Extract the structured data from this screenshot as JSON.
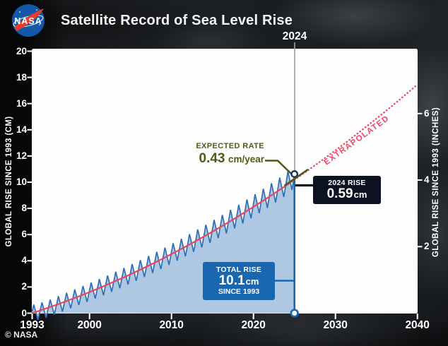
{
  "header": {
    "title": "Satellite Record of Sea Level Rise",
    "logo": "NASA"
  },
  "credit": "© NASA",
  "chart_data": {
    "type": "area",
    "title": "Satellite Record of Sea Level Rise",
    "x_axis": {
      "ticks": [
        1993,
        2000,
        2010,
        2020,
        2030,
        2040
      ],
      "range": [
        1993,
        2040.5
      ]
    },
    "y_axis_left": {
      "label": "GLOBAL RISE SINCE 1993 (CM)",
      "ticks": [
        0,
        2,
        4,
        6,
        8,
        10,
        12,
        14,
        16,
        18,
        20
      ],
      "range": [
        0,
        20.2
      ]
    },
    "y_axis_right": {
      "label": "GLOBAL RISE SINCE 1993 (INCHES)",
      "ticks": [
        2,
        4,
        6
      ],
      "cm_per_inch": 2.54
    },
    "series": {
      "start_year": 1993,
      "annual_mean_cm": [
        0,
        0.15,
        0.35,
        0.6,
        0.85,
        1.1,
        1.36,
        1.61,
        1.87,
        2.13,
        2.41,
        2.69,
        2.98,
        3.27,
        3.58,
        3.89,
        4.2,
        4.53,
        4.86,
        5.2,
        5.55,
        5.9,
        6.26,
        6.63,
        7.01,
        7.39,
        7.78,
        8.18,
        8.58,
        9.0,
        9.42,
        9.85
      ],
      "latest": {
        "year": 2025.0,
        "cm": 10.45
      },
      "seasonal_amplitude_cm": {
        "start": 0.62,
        "end": 0.86
      }
    },
    "trend": {
      "quadratic_cm": {
        "a": 0.2052,
        "b": 0.003534
      },
      "solid_until_year": 2025.0,
      "extrapolated_until_year": 2040.05,
      "rate_2024_cm_per_year": 0.43,
      "value_2040_cm": 17.4
    },
    "annotations": {
      "current_year": "2024",
      "expected_rate": {
        "title": "EXPECTED RATE",
        "value": "0.43",
        "unit": "cm/year"
      },
      "rise_2024": {
        "title": "2024 RISE",
        "value": "0.59",
        "unit": "cm"
      },
      "total_rise": {
        "title": "TOTAL RISE",
        "value": "10.1",
        "unit": "cm",
        "subtitle": "SINCE 1993"
      },
      "extrapolated": "EXTRAPOLATED",
      "total_rise_cm": 10.1
    },
    "colors": {
      "plot_bg": "#fdfdfd",
      "area_fill": "#aec8e4",
      "observed_line": "#2e6eb5",
      "trend_line": "#e8465f",
      "trend_dotted": "#ee4468",
      "accent_green": "#4d5d15",
      "box_blue": "#1a67b1",
      "box_black": "#0c1222",
      "timeline_gray": "#9aa0a6",
      "marker_ring_dark": "#173a60",
      "tick_white": "#ffffff"
    }
  }
}
